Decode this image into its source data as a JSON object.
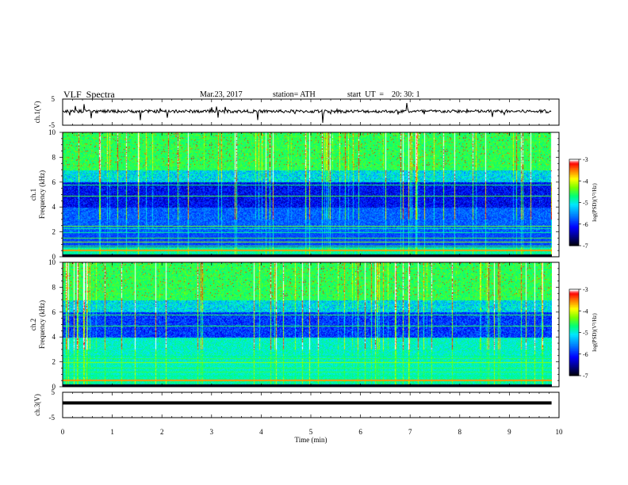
{
  "header": {
    "title": "VLF  Spectra",
    "date": "Mar.23, 2017",
    "station": "station= ATH",
    "start_ut": "start  UT  =    20: 30: 1"
  },
  "chart_data": [
    {
      "type": "line",
      "title": "VLF  Spectra",
      "ylabel": "ch.1(V)",
      "ylim": [
        -5,
        5
      ],
      "yticks": [
        "5",
        "-5"
      ],
      "xlim": [
        0,
        10
      ],
      "description_values": {
        "baseline": 0.3,
        "noise_amplitude": 1.2,
        "spike_min": -4
      }
    },
    {
      "type": "heatmap",
      "ylabel": "ch.1\nFrequency  (kHz)",
      "ylim": [
        0,
        10
      ],
      "yticks": [
        "0",
        "2",
        "4",
        "6",
        "8",
        "10"
      ],
      "xlim": [
        0,
        10
      ],
      "x_extent_min": 9.85,
      "colorbar": {
        "label": "log(PSD)(V²/Hz)",
        "range": [
          -7,
          -3
        ],
        "ticks": [
          "-3",
          "-4",
          "-5",
          "-6",
          "-7"
        ]
      },
      "colors": [
        "#000000",
        "#00008b",
        "#0000ff",
        "#0096ff",
        "#00ffff",
        "#00ff00",
        "#ffff00",
        "#ff8000",
        "#ff0000",
        "#ffffff"
      ]
    },
    {
      "type": "heatmap",
      "ylabel": "ch.2\nFrequency  (kHz)",
      "ylim": [
        0,
        10
      ],
      "yticks": [
        "0",
        "2",
        "4",
        "6",
        "8",
        "10"
      ],
      "xlim": [
        0,
        10
      ],
      "x_extent_min": 9.85,
      "colorbar": {
        "label": "log(PSD)(V²/Hz)",
        "range": [
          -7,
          -3
        ],
        "ticks": [
          "-3",
          "-4",
          "-5",
          "-6",
          "-7"
        ]
      }
    },
    {
      "type": "line",
      "ylabel": "ch.3(V)",
      "ylim": [
        -5,
        5
      ],
      "yticks": [
        "5",
        "-5"
      ],
      "xlim": [
        0,
        10
      ],
      "xlabel": "Time  (min)",
      "xticks": [
        "0",
        "1",
        "2",
        "3",
        "4",
        "5",
        "6",
        "7",
        "8",
        "9",
        "10"
      ],
      "constant_value": 0.8
    }
  ]
}
